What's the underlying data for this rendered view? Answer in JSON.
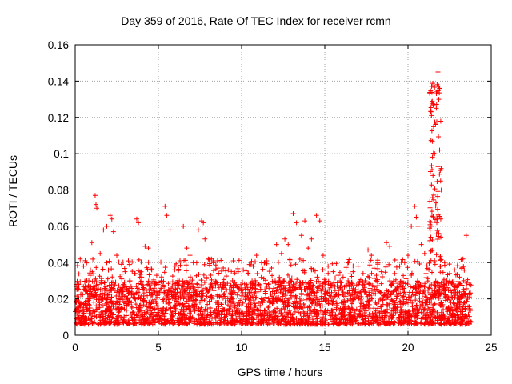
{
  "chart_data": {
    "type": "scatter",
    "title": "Day 359 of 2016, Rate Of TEC Index for receiver rcmn",
    "xlabel": "GPS time / hours",
    "ylabel": "ROTI / TECUs",
    "xlim": [
      0,
      25
    ],
    "ylim": [
      0,
      0.16
    ],
    "x_ticks": [
      0,
      5,
      10,
      15,
      20,
      25
    ],
    "x_tick_labels": [
      "0",
      "5",
      "10",
      "15",
      "20",
      "25"
    ],
    "y_ticks": [
      0,
      0.02,
      0.04,
      0.06,
      0.08,
      0.1,
      0.12,
      0.14,
      0.16
    ],
    "y_tick_labels": [
      "0",
      "0.02",
      "0.04",
      "0.06",
      "0.08",
      "0.1",
      "0.12",
      "0.14",
      "0.16"
    ],
    "grid": true,
    "marker": "+",
    "color": "#ff0000",
    "series": [
      {
        "name": "ROTI",
        "points": [
          [
            0.1,
            0.028
          ],
          [
            0.3,
            0.042
          ],
          [
            0.5,
            0.038
          ],
          [
            0.7,
            0.03
          ],
          [
            0.9,
            0.033
          ],
          [
            1.0,
            0.051
          ],
          [
            1.2,
            0.077
          ],
          [
            1.25,
            0.072
          ],
          [
            1.3,
            0.07
          ],
          [
            1.5,
            0.045
          ],
          [
            1.7,
            0.058
          ],
          [
            1.9,
            0.06
          ],
          [
            2.1,
            0.066
          ],
          [
            2.2,
            0.064
          ],
          [
            2.3,
            0.057
          ],
          [
            2.5,
            0.044
          ],
          [
            2.8,
            0.031
          ],
          [
            3.0,
            0.035
          ],
          [
            3.3,
            0.03
          ],
          [
            3.6,
            0.034
          ],
          [
            3.7,
            0.064
          ],
          [
            3.8,
            0.062
          ],
          [
            4.0,
            0.032
          ],
          [
            4.2,
            0.049
          ],
          [
            4.4,
            0.048
          ],
          [
            4.6,
            0.036
          ],
          [
            4.9,
            0.033
          ],
          [
            5.2,
            0.03
          ],
          [
            5.4,
            0.071
          ],
          [
            5.5,
            0.066
          ],
          [
            5.7,
            0.058
          ],
          [
            6.0,
            0.038
          ],
          [
            6.3,
            0.041
          ],
          [
            6.5,
            0.06
          ],
          [
            6.7,
            0.048
          ],
          [
            6.9,
            0.044
          ],
          [
            7.1,
            0.04
          ],
          [
            7.4,
            0.058
          ],
          [
            7.6,
            0.063
          ],
          [
            7.7,
            0.062
          ],
          [
            7.8,
            0.053
          ],
          [
            8.0,
            0.042
          ],
          [
            8.3,
            0.04
          ],
          [
            8.6,
            0.034
          ],
          [
            8.9,
            0.037
          ],
          [
            9.2,
            0.036
          ],
          [
            9.5,
            0.041
          ],
          [
            9.8,
            0.035
          ],
          [
            10.1,
            0.036
          ],
          [
            10.4,
            0.034
          ],
          [
            10.7,
            0.038
          ],
          [
            10.9,
            0.044
          ],
          [
            11.2,
            0.04
          ],
          [
            11.5,
            0.041
          ],
          [
            11.8,
            0.037
          ],
          [
            12.1,
            0.05
          ],
          [
            12.4,
            0.045
          ],
          [
            12.6,
            0.053
          ],
          [
            12.8,
            0.05
          ],
          [
            13.1,
            0.067
          ],
          [
            13.3,
            0.062
          ],
          [
            13.6,
            0.055
          ],
          [
            13.8,
            0.063
          ],
          [
            14.0,
            0.048
          ],
          [
            14.2,
            0.053
          ],
          [
            14.5,
            0.066
          ],
          [
            14.7,
            0.063
          ],
          [
            14.9,
            0.044
          ],
          [
            15.2,
            0.038
          ],
          [
            15.5,
            0.035
          ],
          [
            15.8,
            0.033
          ],
          [
            16.1,
            0.032
          ],
          [
            16.4,
            0.03
          ],
          [
            16.7,
            0.035
          ],
          [
            17.0,
            0.038
          ],
          [
            17.3,
            0.034
          ],
          [
            17.6,
            0.047
          ],
          [
            17.8,
            0.044
          ],
          [
            18.1,
            0.033
          ],
          [
            18.4,
            0.035
          ],
          [
            18.7,
            0.051
          ],
          [
            18.9,
            0.049
          ],
          [
            19.2,
            0.034
          ],
          [
            19.5,
            0.038
          ],
          [
            19.8,
            0.04
          ],
          [
            20.0,
            0.044
          ],
          [
            20.2,
            0.06
          ],
          [
            20.4,
            0.071
          ],
          [
            20.5,
            0.065
          ],
          [
            20.6,
            0.06
          ],
          [
            20.8,
            0.05
          ],
          [
            21.0,
            0.045
          ],
          [
            21.3,
            0.059
          ],
          [
            21.5,
            0.088
          ],
          [
            21.6,
            0.1
          ],
          [
            21.7,
            0.125
          ],
          [
            21.75,
            0.138
          ],
          [
            21.8,
            0.145
          ],
          [
            21.85,
            0.13
          ],
          [
            21.9,
            0.102
          ],
          [
            22.0,
            0.08
          ],
          [
            22.2,
            0.04
          ],
          [
            22.5,
            0.034
          ],
          [
            22.8,
            0.036
          ],
          [
            23.1,
            0.032
          ],
          [
            23.3,
            0.042
          ],
          [
            23.5,
            0.055
          ],
          [
            23.7,
            0.028
          ]
        ]
      }
    ]
  }
}
